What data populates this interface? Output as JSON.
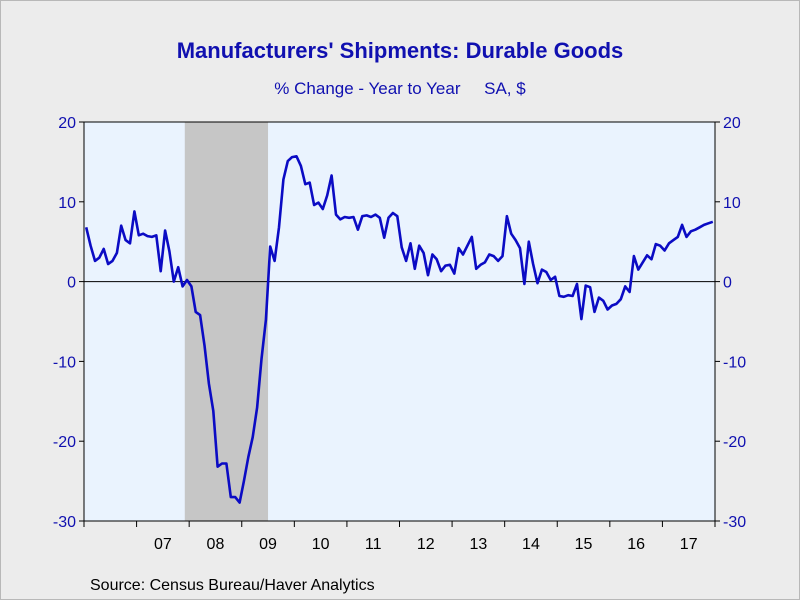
{
  "chart_data": {
    "type": "line",
    "title": "Manufacturers' Shipments: Durable Goods",
    "subtitle": "% Change - Year to Year     SA, $",
    "source": "Source:  Census Bureau/Haver Analytics",
    "xlabel": "",
    "ylabel": "",
    "ylim": [
      -30,
      20
    ],
    "yticks": [
      20,
      10,
      0,
      -10,
      -20,
      -30
    ],
    "xlim": [
      "2006-01",
      "2017-12"
    ],
    "x_tick_labels": [
      "07",
      "08",
      "09",
      "10",
      "11",
      "12",
      "13",
      "14",
      "15",
      "16",
      "17"
    ],
    "recession": {
      "start": "2007-12",
      "end": "2009-06"
    },
    "zero_line": true,
    "grid": false,
    "colors": {
      "line": "#0b0bc4",
      "plot_bg": "#eaf3fe",
      "recession": "#c6c6c6",
      "text": "#1010b0"
    },
    "series": [
      {
        "x": [
          "2006-01",
          "2006-02",
          "2006-03",
          "2006-04",
          "2006-05",
          "2006-06",
          "2006-07",
          "2006-08",
          "2006-09",
          "2006-10",
          "2006-11",
          "2006-12",
          "2007-01",
          "2007-02",
          "2007-03",
          "2007-04",
          "2007-05",
          "2007-06",
          "2007-07",
          "2007-08",
          "2007-09",
          "2007-10",
          "2007-11",
          "2007-12",
          "2008-01",
          "2008-02",
          "2008-03",
          "2008-04",
          "2008-05",
          "2008-06",
          "2008-07",
          "2008-08",
          "2008-09",
          "2008-10",
          "2008-11",
          "2008-12",
          "2009-01",
          "2009-02",
          "2009-03",
          "2009-04",
          "2009-05",
          "2009-06",
          "2009-07",
          "2009-08",
          "2009-09",
          "2009-10",
          "2009-11",
          "2009-12",
          "2010-01",
          "2010-02",
          "2010-03",
          "2010-04",
          "2010-05",
          "2010-06",
          "2010-07",
          "2010-08",
          "2010-09",
          "2010-10",
          "2010-11",
          "2010-12",
          "2011-01",
          "2011-02",
          "2011-03",
          "2011-04",
          "2011-05",
          "2011-06",
          "2011-07",
          "2011-08",
          "2011-09",
          "2011-10",
          "2011-11",
          "2011-12",
          "2012-01",
          "2012-02",
          "2012-03",
          "2012-04",
          "2012-05",
          "2012-06",
          "2012-07",
          "2012-08",
          "2012-09",
          "2012-10",
          "2012-11",
          "2012-12",
          "2013-01",
          "2013-02",
          "2013-03",
          "2013-04",
          "2013-05",
          "2013-06",
          "2013-07",
          "2013-08",
          "2013-09",
          "2013-10",
          "2013-11",
          "2013-12",
          "2014-01",
          "2014-02",
          "2014-03",
          "2014-04",
          "2014-05",
          "2014-06",
          "2014-07",
          "2014-08",
          "2014-09",
          "2014-10",
          "2014-11",
          "2014-12",
          "2015-01",
          "2015-02",
          "2015-03",
          "2015-04",
          "2015-05",
          "2015-06",
          "2015-07",
          "2015-08",
          "2015-09",
          "2015-10",
          "2015-11",
          "2015-12",
          "2016-01",
          "2016-02",
          "2016-03",
          "2016-04",
          "2016-05",
          "2016-06",
          "2016-07",
          "2016-08",
          "2016-09",
          "2016-10",
          "2016-11",
          "2016-12",
          "2017-01",
          "2017-02",
          "2017-03",
          "2017-04",
          "2017-05",
          "2017-06",
          "2017-07",
          "2017-08",
          "2017-09",
          "2017-10",
          "2017-11",
          "2017-12"
        ],
        "values": [
          6.8,
          4.5,
          2.6,
          3.0,
          4.1,
          2.2,
          2.6,
          3.6,
          7.0,
          5.2,
          4.8,
          8.8,
          5.8,
          6.0,
          5.7,
          5.6,
          5.8,
          1.3,
          6.4,
          3.8,
          0.0,
          1.8,
          -0.6,
          0.2,
          -0.6,
          -3.8,
          -4.2,
          -8.0,
          -12.8,
          -16.2,
          -23.2,
          -22.8,
          -22.8,
          -27.0,
          -27.0,
          -27.7,
          -25.0,
          -22.0,
          -19.5,
          -15.8,
          -9.7,
          -4.8,
          4.4,
          2.6,
          6.8,
          12.8,
          15.1,
          15.6,
          15.7,
          14.5,
          12.2,
          12.4,
          9.6,
          9.9,
          9.1,
          10.8,
          13.3,
          8.4,
          7.8,
          8.1,
          8.0,
          8.1,
          6.5,
          8.2,
          8.3,
          8.1,
          8.4,
          8.0,
          5.5,
          8.0,
          8.6,
          8.2,
          4.3,
          2.6,
          4.8,
          1.6,
          4.5,
          3.6,
          0.8,
          3.4,
          2.8,
          1.3,
          2.0,
          2.1,
          1.0,
          4.2,
          3.4,
          4.5,
          5.6,
          1.6,
          2.1,
          2.4,
          3.4,
          3.2,
          2.6,
          3.2,
          8.2,
          6.0,
          5.2,
          4.2,
          -0.3,
          5.0,
          2.2,
          -0.2,
          1.5,
          1.2,
          0.2,
          0.6,
          -1.8,
          -1.9,
          -1.7,
          -1.8,
          -0.3,
          -4.7,
          -0.5,
          -0.7,
          -3.8,
          -2.0,
          -2.4,
          -3.5,
          -3.0,
          -2.8,
          -2.2,
          -0.6,
          -1.3,
          3.2,
          1.5,
          2.4,
          3.3,
          2.8,
          4.7,
          4.5,
          3.9,
          4.8,
          5.2,
          5.6,
          7.1,
          5.6,
          6.3,
          6.5,
          6.8,
          7.1,
          7.3,
          7.5
        ]
      }
    ]
  }
}
